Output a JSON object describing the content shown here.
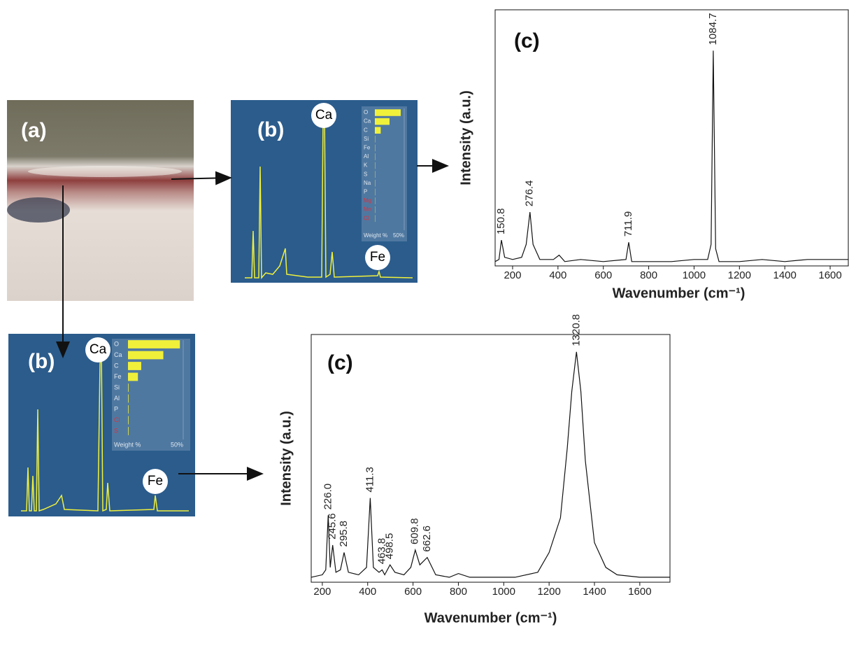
{
  "photo": {
    "panel_label": "(a)"
  },
  "chart_data": [
    {
      "type": "hbar",
      "panel_label": "(b)",
      "peak_labels": [
        "Ca",
        "Fe"
      ],
      "categories": [
        "O",
        "Ca",
        "C",
        "Si",
        "Fe",
        "Al",
        "K",
        "S",
        "Na",
        "P",
        "Mg",
        "Mn",
        "Cl"
      ],
      "values": [
        44,
        25,
        10,
        0.5,
        0.5,
        0.5,
        0.5,
        0.5,
        0.5,
        0.5,
        0.5,
        0.5,
        0.5
      ],
      "label_colors": [
        "#dde6ee",
        "#dde6ee",
        "#dde6ee",
        "#dde6ee",
        "#dde6ee",
        "#dde6ee",
        "#dde6ee",
        "#dde6ee",
        "#dde6ee",
        "#dde6ee",
        "#e0303a",
        "#e0303a",
        "#e0303a"
      ],
      "color": "#f0f03a",
      "xlim": [
        0,
        50
      ],
      "xticks": [
        {
          "value": 50,
          "label": "50%"
        }
      ],
      "xlabel": "Weight %"
    },
    {
      "type": "hbar",
      "panel_label": "(b)",
      "peak_labels": [
        "Ca",
        "Fe"
      ],
      "categories": [
        "O",
        "Ca",
        "C",
        "Fe",
        "Si",
        "Al",
        "P",
        "Cl",
        "S"
      ],
      "values": [
        47,
        32,
        12,
        9,
        0.5,
        0.5,
        0.5,
        0.5,
        0.5
      ],
      "label_colors": [
        "#dde6ee",
        "#dde6ee",
        "#dde6ee",
        "#dde6ee",
        "#dde6ee",
        "#dde6ee",
        "#dde6ee",
        "#e0303a",
        "#e0303a"
      ],
      "color": "#f0f03a",
      "xlim": [
        0,
        50
      ],
      "xticks": [
        {
          "value": 50,
          "label": "50%"
        }
      ],
      "xlabel": "Weight %"
    },
    {
      "type": "line",
      "panel_label": "(c)",
      "xlabel": "Wavenumber (cm⁻¹)",
      "ylabel": "Intensity (a.u.)",
      "color": "#111111",
      "x": [
        123,
        140,
        150.8,
        165,
        200,
        240,
        260,
        276.4,
        290,
        320,
        380,
        405,
        430,
        500,
        600,
        700,
        711.9,
        725,
        800,
        900,
        1000,
        1060,
        1075,
        1084.7,
        1095,
        1110,
        1200,
        1300,
        1400,
        1500,
        1600,
        1680
      ],
      "values": [
        2,
        3,
        12,
        4,
        3,
        4,
        10,
        25,
        10,
        3,
        3,
        5,
        2,
        3,
        2,
        3,
        11,
        2,
        2,
        2,
        3,
        3,
        10,
        100,
        8,
        2,
        2,
        3,
        2,
        3,
        3,
        3
      ],
      "xlim": [
        123,
        1680
      ],
      "xticks": [
        200,
        400,
        600,
        800,
        1000,
        1200,
        1400,
        1600
      ],
      "ylim": [
        0,
        119
      ],
      "annotations": [
        {
          "x": 150.8,
          "label": "150.8"
        },
        {
          "x": 276.4,
          "label": "276.4"
        },
        {
          "x": 711.9,
          "label": "711.9"
        },
        {
          "x": 1084.7,
          "label": "1084.7"
        }
      ]
    },
    {
      "type": "line",
      "panel_label": "(c)",
      "xlabel": "Wavenumber (cm⁻¹)",
      "ylabel": "Intensity (a.u.)",
      "color": "#111111",
      "x": [
        151,
        200,
        215,
        226.0,
        235,
        245.6,
        260,
        280,
        295.8,
        315,
        360,
        395,
        411.3,
        425,
        450,
        463.8,
        475,
        498.5,
        520,
        560,
        590,
        609.8,
        630,
        662.6,
        700,
        760,
        800,
        850,
        950,
        1050,
        1150,
        1200,
        1250,
        1280,
        1300,
        1320.8,
        1340,
        1360,
        1400,
        1450,
        1500,
        1600,
        1733
      ],
      "values": [
        2,
        3,
        5,
        27,
        6,
        15,
        4,
        5,
        12,
        4,
        3,
        6,
        34,
        6,
        4,
        5,
        3,
        7,
        4,
        3,
        6,
        13,
        7,
        10,
        3,
        2,
        3.5,
        2,
        2,
        2,
        4,
        12,
        26,
        54,
        77,
        93,
        77,
        49,
        16,
        6,
        3,
        2,
        2
      ],
      "xlim": [
        151,
        1733
      ],
      "xticks": [
        200,
        400,
        600,
        800,
        1000,
        1200,
        1400,
        1600
      ],
      "ylim": [
        0,
        100
      ],
      "annotations": [
        {
          "x": 226.0,
          "label": "226.0"
        },
        {
          "x": 245.6,
          "label": "245.6"
        },
        {
          "x": 295.8,
          "label": "295.8"
        },
        {
          "x": 411.3,
          "label": "411.3"
        },
        {
          "x": 463.8,
          "label": "463.8"
        },
        {
          "x": 498.5,
          "label": "498.5"
        },
        {
          "x": 609.8,
          "label": "609.8"
        },
        {
          "x": 662.6,
          "label": "662.6"
        },
        {
          "x": 1320.8,
          "label": "1320.8"
        }
      ]
    }
  ]
}
